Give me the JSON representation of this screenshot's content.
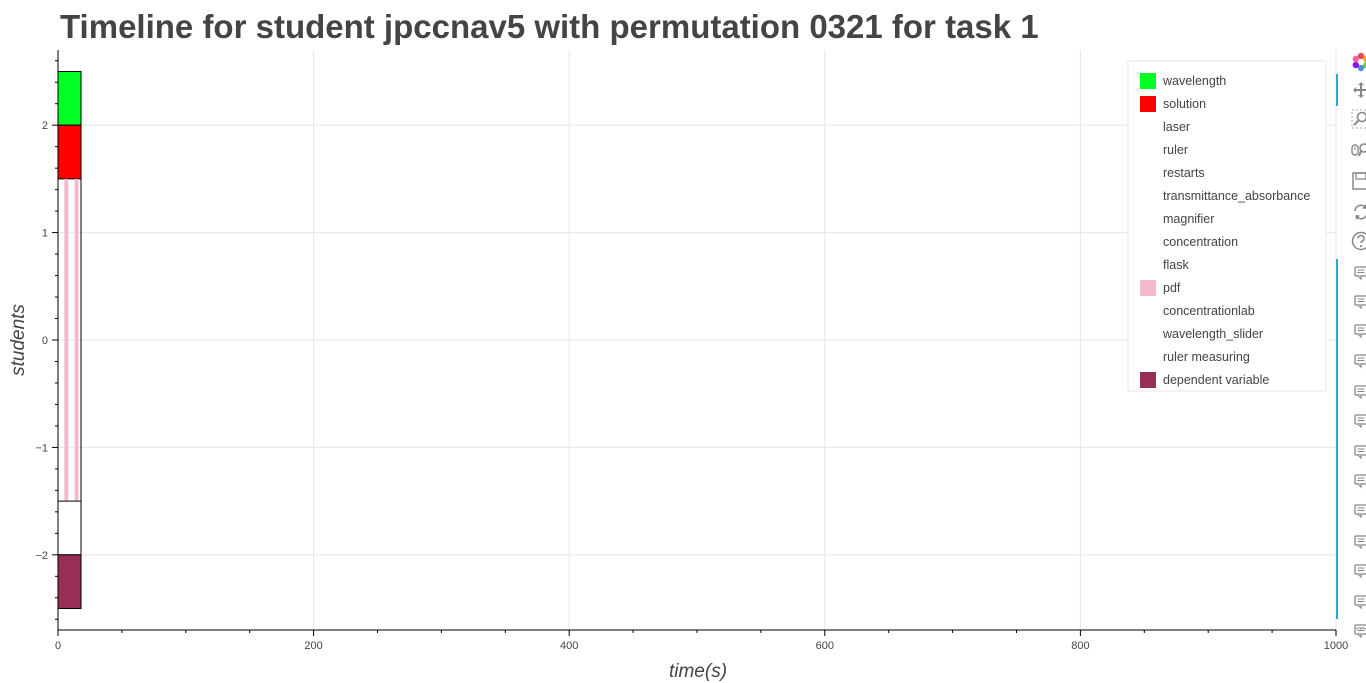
{
  "chart_data": {
    "type": "timeline",
    "title": "Timeline for student jpccnav5 with permutation 0321 for task 1",
    "xlabel": "time(s)",
    "ylabel": "students",
    "xlim": [
      0,
      1000
    ],
    "ylim": [
      -2.7,
      2.7
    ],
    "x_ticks": [
      0,
      200,
      400,
      600,
      800,
      1000
    ],
    "y_ticks": [
      2,
      1,
      0,
      -1,
      -2
    ],
    "y_tick_labels": [
      "2",
      "1",
      "0",
      "−1",
      "−2"
    ],
    "grid": true,
    "legend_position": "top-right",
    "series": [
      {
        "name": "wavelength",
        "color": "#00ff22",
        "segments": [
          {
            "start": 0,
            "end": 18,
            "y0": 2.0,
            "y1": 2.5
          }
        ]
      },
      {
        "name": "solution",
        "color": "#ff0000",
        "segments": [
          {
            "start": 0,
            "end": 18,
            "y0": 1.5,
            "y1": 2.0
          }
        ]
      },
      {
        "name": "laser",
        "color": "#ffffff",
        "segments": []
      },
      {
        "name": "ruler",
        "color": "#ffffff",
        "segments": []
      },
      {
        "name": "restarts",
        "color": "#ffffff",
        "segments": []
      },
      {
        "name": "transmittance_absorbance",
        "color": "#ffffff",
        "segments": []
      },
      {
        "name": "magnifier",
        "color": "#ffffff",
        "segments": []
      },
      {
        "name": "concentration",
        "color": "#ffffff",
        "segments": []
      },
      {
        "name": "flask",
        "color": "#ffffff",
        "segments": []
      },
      {
        "name": "pdf",
        "color": "#f4b8cb",
        "segments": [
          {
            "start": 5,
            "end": 8,
            "y0": -1.5,
            "y1": 1.5
          },
          {
            "start": 13,
            "end": 16,
            "y0": -1.5,
            "y1": 1.5
          }
        ]
      },
      {
        "name": "concentrationlab",
        "color": "#ffffff",
        "segments": [
          {
            "start": 0,
            "end": 18,
            "y0": -2.0,
            "y1": -1.5
          }
        ]
      },
      {
        "name": "wavelength_slider",
        "color": "#ffffff",
        "segments": []
      },
      {
        "name": "ruler measuring",
        "color": "#ffffff",
        "segments": []
      },
      {
        "name": "dependent variable",
        "color": "#962e58",
        "segments": [
          {
            "start": 0,
            "end": 18,
            "y0": -2.5,
            "y1": -2.0
          }
        ]
      }
    ]
  },
  "toolbar": {
    "icons": [
      "bokeh-logo-icon",
      "pan-icon",
      "box-zoom-icon",
      "wheel-zoom-icon",
      "save-icon",
      "reset-icon",
      "help-icon",
      "hover-icon",
      "hover-icon",
      "hover-icon",
      "hover-icon",
      "hover-icon",
      "hover-icon",
      "hover-icon",
      "hover-icon",
      "hover-icon",
      "hover-icon",
      "hover-icon",
      "hover-icon",
      "hover-icon"
    ],
    "more_label": "···"
  }
}
